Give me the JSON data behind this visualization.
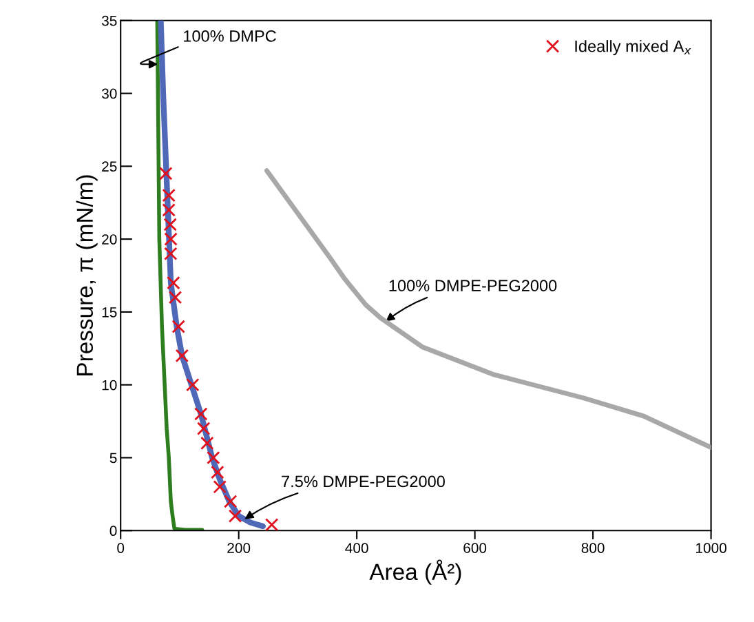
{
  "chart_data": {
    "type": "line",
    "xlabel": "Area (Å²)",
    "ylabel": "Pressure, π (mN/m)",
    "xlim": [
      0,
      1000
    ],
    "ylim": [
      0,
      35
    ],
    "xticks": [
      0,
      200,
      400,
      600,
      800,
      1000
    ],
    "yticks": [
      0,
      5,
      10,
      15,
      20,
      25,
      30,
      35
    ],
    "grid": false,
    "legend": "top right",
    "series": [
      {
        "color": "#2e7d1f",
        "x": [
          62,
          65.5,
          70,
          74.6,
          78,
          81.6,
          85,
          88,
          91,
          95,
          110,
          138
        ],
        "values": [
          35,
          20,
          14,
          10,
          7,
          5,
          2,
          1,
          0.15,
          0.1,
          0.05,
          0.05
        ]
      },
      {
        "color": "#5068b8",
        "x": [
          68,
          72,
          77,
          82,
          85,
          95,
          104,
          120,
          136,
          155,
          168,
          184,
          200,
          220,
          241
        ],
        "values": [
          35,
          30,
          25,
          20,
          17,
          14,
          12,
          10,
          8,
          5,
          3.5,
          2,
          1,
          0.55,
          0.3
        ]
      },
      {
        "color": "#a8a8a8",
        "x": [
          247.5,
          303,
          354,
          379,
          415,
          440,
          511,
          632.5,
          784,
          886,
          1000
        ],
        "values": [
          24.7,
          21.6,
          18.75,
          17.3,
          15.5,
          14.6,
          12.6,
          10.7,
          9.1,
          7.85,
          5.7
        ]
      },
      {
        "type": "scatter",
        "name": "Ideally mixed A$_{x}$",
        "color": "#e0101c",
        "marker": "cross",
        "x": [
          76.5,
          81.6,
          81.6,
          84,
          85,
          84.7,
          89.4,
          92.5,
          98,
          104,
          122,
          136,
          140.6,
          146.5,
          157,
          164,
          168,
          186,
          194,
          256
        ],
        "values": [
          24.5,
          23,
          22,
          21,
          20,
          19,
          17,
          16,
          14,
          12,
          10,
          8,
          7,
          6,
          5,
          4,
          3,
          2,
          1,
          0.4
        ]
      }
    ],
    "annotations": [
      {
        "text": "100% DMPC",
        "x": 63,
        "y": 32
      },
      {
        "text": "100% DMPE-PEG2000",
        "x": 449,
        "y": 14.35
      },
      {
        "text": "7.5% DMPE-PEG2000",
        "x": 210,
        "y": 0.78
      }
    ]
  }
}
